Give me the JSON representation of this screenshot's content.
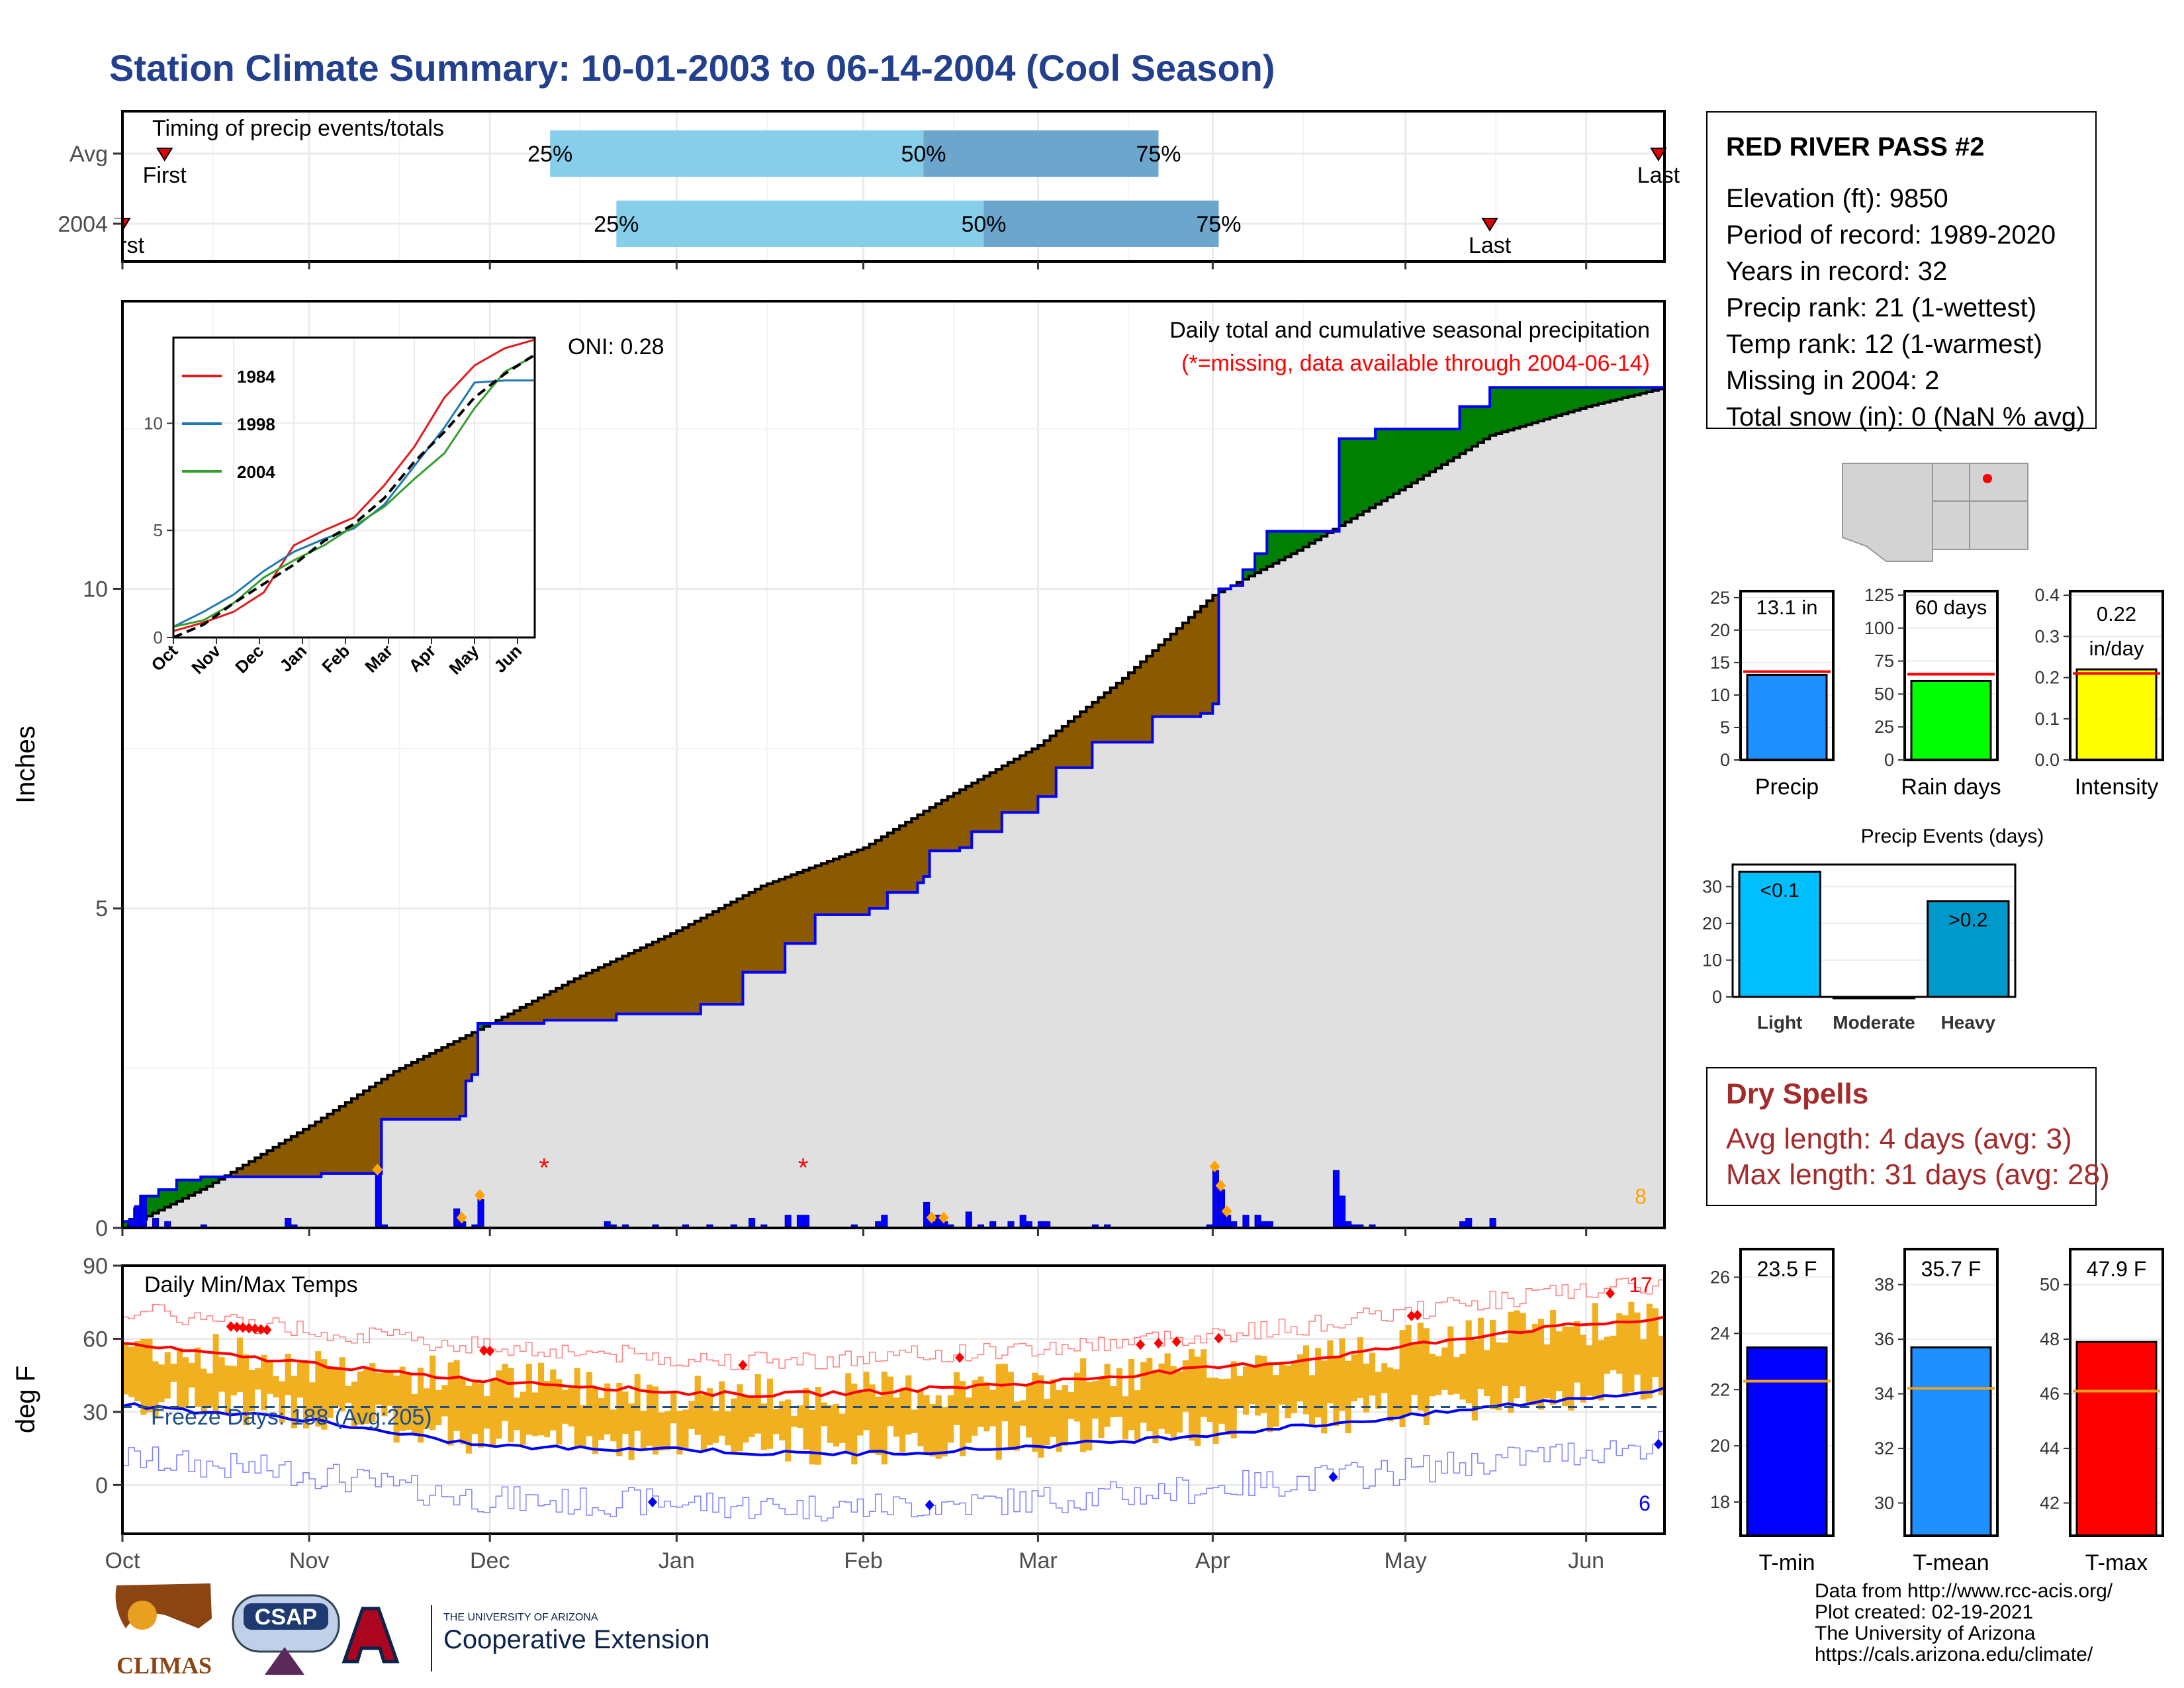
{
  "title": "Station Climate Summary: 10-01-2003 to 06-14-2004 (Cool Season)",
  "station": {
    "name": "RED RIVER PASS #2",
    "lines": [
      "Elevation (ft): 9850",
      "Period of record: 1989-2020",
      "Years in record: 32",
      "Precip rank: 21 (1-wettest)",
      "Temp rank: 12 (1-warmest)",
      "Missing in 2004: 2",
      "Total snow (in): 0 (NaN % avg)"
    ]
  },
  "dry_spells": {
    "title": "Dry Spells",
    "avg_length": "Avg length: 4 days (avg: 3)",
    "max_length": "Max length: 31 days (avg: 28)"
  },
  "credits": [
    "Data from http://www.rcc-acis.org/",
    "Plot created: 02-19-2021",
    "The University of Arizona",
    "https://cals.arizona.edu/climate/"
  ],
  "logos": {
    "climas": "CLIMAS",
    "csap": "CSAP",
    "ua_small": "THE UNIVERSITY OF ARIZONA",
    "ua_big": "Cooperative Extension"
  },
  "colors": {
    "title": "#23408e",
    "quartile_light": "#87ceeb",
    "quartile_dark": "#6ca6cd",
    "cum_fill": "#e0e0e0",
    "cum_line": "#0000ff",
    "surplus": "#008000",
    "deficit": "#8b5a00",
    "precip_bar": "#1e90ff",
    "rain_bar": "#00ff00",
    "intensity_bar": "#ffff00",
    "light_bar": "#00bfff",
    "heavy_bar": "#0099cc",
    "tmin_bar": "#0000ff",
    "tmean_bar": "#1e90ff",
    "tmax_bar": "#ff0000",
    "temp_range": "#f0b020"
  },
  "chart_data": [
    {
      "id": "timing",
      "type": "bar",
      "title": "Timing of precip events/totals",
      "rows": [
        {
          "label": "Avg",
          "first": "10-08",
          "q25": "12-11",
          "q50": "02-11",
          "q75": "03-21",
          "last": "06-13"
        },
        {
          "label": "2004",
          "first": "10-01",
          "q25": "12-22",
          "q50": "02-21",
          "q75": "03-31",
          "last": "05-15"
        }
      ],
      "quartile_labels": [
        "25%",
        "50%",
        "75%"
      ],
      "marker_labels": [
        "First",
        "Last"
      ]
    },
    {
      "id": "cumulative",
      "type": "area",
      "title": "Daily total and cumulative seasonal precipitation",
      "subtitle": "(*=missing, data available through 2004-06-14)",
      "oni": "ONI: 0.28",
      "ylabel": "Inches",
      "ylim": [
        0,
        14.5
      ],
      "yticks": [
        0,
        5,
        10
      ],
      "x_ticks": [
        "Oct",
        "Nov",
        "Dec",
        "Jan",
        "Feb",
        "Mar",
        "Apr",
        "May",
        "Jun"
      ],
      "x_tick_dates": [
        "10-01",
        "11-01",
        "12-01",
        "01-01",
        "02-01",
        "03-01",
        "04-01",
        "05-01",
        "06-01"
      ],
      "avg_cumulative": {
        "dates": [
          "10-01",
          "10-15",
          "11-01",
          "11-15",
          "12-01",
          "12-15",
          "01-01",
          "01-15",
          "02-01",
          "02-15",
          "03-01",
          "03-15",
          "04-01",
          "04-15",
          "05-01",
          "05-15",
          "06-01",
          "06-14"
        ],
        "values": [
          0.0,
          0.65,
          1.6,
          2.45,
          3.2,
          3.9,
          4.65,
          5.35,
          5.95,
          6.75,
          7.55,
          8.6,
          9.9,
          10.6,
          11.6,
          12.4,
          12.85,
          13.15
        ]
      },
      "cumulative_2004": {
        "dates": [
          "10-01",
          "10-03",
          "10-04",
          "10-07",
          "10-10",
          "10-14",
          "10-21",
          "10-28",
          "11-03",
          "11-12",
          "11-13",
          "11-26",
          "11-27",
          "11-28",
          "11-29",
          "12-01",
          "12-10",
          "12-22",
          "01-05",
          "01-12",
          "01-19",
          "01-24",
          "02-02",
          "02-05",
          "02-10",
          "02-11",
          "02-12",
          "02-17",
          "02-19",
          "02-24",
          "03-01",
          "03-04",
          "03-10",
          "03-20",
          "03-28",
          "03-30",
          "03-31",
          "04-01",
          "04-02",
          "04-04",
          "04-06",
          "04-08",
          "04-10",
          "04-15",
          "04-21",
          "04-22",
          "04-24",
          "04-28",
          "05-10",
          "05-15",
          "05-20",
          "05-28",
          "06-14"
        ],
        "values": [
          0.1,
          0.3,
          0.5,
          0.6,
          0.75,
          0.8,
          0.8,
          0.8,
          0.85,
          0.85,
          1.7,
          1.75,
          2.3,
          2.4,
          3.2,
          3.2,
          3.25,
          3.35,
          3.5,
          4.0,
          4.45,
          4.9,
          5.0,
          5.25,
          5.4,
          5.5,
          5.9,
          5.95,
          6.2,
          6.5,
          6.75,
          7.2,
          7.6,
          8.0,
          8.05,
          8.2,
          8.35,
          9.9,
          10.0,
          10.05,
          10.3,
          10.55,
          10.9,
          10.9,
          10.9,
          12.35,
          12.35,
          12.5,
          12.85,
          13.15,
          13.15,
          13.15,
          13.15
        ]
      },
      "daily_precip": {
        "dates": [
          "10-02",
          "10-03",
          "10-04",
          "10-06",
          "10-08",
          "10-14",
          "10-28",
          "10-29",
          "11-12",
          "11-13",
          "11-25",
          "11-26",
          "11-28",
          "11-29",
          "12-20",
          "12-21",
          "12-23",
          "12-28",
          "01-02",
          "01-06",
          "01-10",
          "01-13",
          "01-15",
          "01-19",
          "01-21",
          "01-22",
          "01-30",
          "02-03",
          "02-04",
          "02-11",
          "02-12",
          "02-13",
          "02-14",
          "02-15",
          "02-18",
          "02-20",
          "02-22",
          "02-25",
          "02-27",
          "02-28",
          "03-01",
          "03-02",
          "03-10",
          "03-12",
          "03-29",
          "03-31",
          "04-01",
          "04-02",
          "04-03",
          "04-04",
          "04-06",
          "04-08",
          "04-09",
          "04-10",
          "04-21",
          "04-22",
          "04-23",
          "04-24",
          "04-25",
          "04-27",
          "05-10",
          "05-11",
          "05-15"
        ],
        "values": [
          0.15,
          0.35,
          0.5,
          0.15,
          0.1,
          0.05,
          0.15,
          0.05,
          0.85,
          0.05,
          0.3,
          0.1,
          0.05,
          0.45,
          0.1,
          0.05,
          0.05,
          0.05,
          0.05,
          0.05,
          0.05,
          0.15,
          0.05,
          0.2,
          0.2,
          0.2,
          0.05,
          0.1,
          0.2,
          0.4,
          0.1,
          0.2,
          0.1,
          0.05,
          0.25,
          0.05,
          0.1,
          0.1,
          0.2,
          0.1,
          0.1,
          0.1,
          0.05,
          0.05,
          0.05,
          0.1,
          0.9,
          0.6,
          0.2,
          0.1,
          0.2,
          0.2,
          0.1,
          0.1,
          0.9,
          0.5,
          0.1,
          0.05,
          0.05,
          0.05,
          0.1,
          0.15,
          0.15
        ]
      },
      "missing_dates": [
        "12-10",
        "01-22"
      ],
      "heavy_markers": [
        "11-12",
        "11-26",
        "11-29",
        "02-12",
        "02-14",
        "04-01",
        "04-02",
        "04-03"
      ],
      "heavy_count": "8"
    },
    {
      "id": "inset",
      "type": "line",
      "x_ticks": [
        "Oct",
        "Nov",
        "Dec",
        "Jan",
        "Feb",
        "Mar",
        "Apr",
        "May",
        "Jun"
      ],
      "yticks": [
        0,
        5,
        10
      ],
      "ylim": [
        0,
        14
      ],
      "series": [
        {
          "name": "1984",
          "color": "#e31a1c",
          "values": [
            0.3,
            0.7,
            1.2,
            2.1,
            4.3,
            5.0,
            5.6,
            7.1,
            8.9,
            11.2,
            12.7,
            13.5,
            13.9
          ]
        },
        {
          "name": "1998",
          "color": "#1f78b4",
          "values": [
            0.5,
            1.2,
            2.0,
            3.1,
            4.0,
            4.6,
            5.1,
            6.2,
            8.0,
            9.8,
            11.9,
            12.0,
            12.0
          ]
        },
        {
          "name": "2004",
          "color": "#33a02c",
          "values": [
            0.5,
            0.8,
            1.6,
            2.8,
            3.6,
            4.3,
            5.2,
            6.1,
            7.4,
            8.6,
            10.7,
            12.4,
            13.15
          ]
        },
        {
          "name": "Avg",
          "color": "#000000",
          "values": [
            0.0,
            0.6,
            1.6,
            2.5,
            3.4,
            4.5,
            5.3,
            6.5,
            8.2,
            9.6,
            11.2,
            12.3,
            13.2
          ]
        }
      ]
    },
    {
      "id": "temps",
      "type": "line",
      "title": "Daily Min/Max Temps",
      "ylabel": "deg F",
      "ylim": [
        -20,
        90
      ],
      "yticks": [
        0,
        30,
        60,
        90
      ],
      "x_ticks": [
        "Oct",
        "Nov",
        "Dec",
        "Jan",
        "Feb",
        "Mar",
        "Apr",
        "May",
        "Jun"
      ],
      "freeze_label": "Freeze Days: 188 (Avg:205)",
      "freeze_line": 32,
      "record_high_count": "17",
      "record_low_count": "6",
      "avg_max": {
        "dates": [
          "10-01",
          "10-15",
          "11-01",
          "11-15",
          "12-01",
          "12-15",
          "01-01",
          "01-15",
          "02-01",
          "02-15",
          "03-01",
          "03-15",
          "04-01",
          "04-15",
          "05-01",
          "05-15",
          "06-01",
          "06-14"
        ],
        "values": [
          58,
          54,
          50,
          46,
          43,
          41,
          38,
          37,
          38,
          40,
          42,
          45,
          48,
          51,
          57,
          62,
          66,
          68
        ]
      },
      "avg_min": {
        "dates": [
          "10-01",
          "10-15",
          "11-01",
          "11-15",
          "12-01",
          "12-15",
          "01-01",
          "01-15",
          "02-01",
          "02-15",
          "03-01",
          "03-15",
          "04-01",
          "04-15",
          "05-01",
          "05-15",
          "06-01",
          "06-14"
        ],
        "values": [
          33,
          30,
          27,
          21,
          16,
          15,
          15,
          13,
          13,
          14,
          16,
          18,
          21,
          24,
          28,
          32,
          36,
          39
        ]
      }
    },
    {
      "id": "precip_summary",
      "type": "bar",
      "panels": [
        {
          "name": "Precip",
          "label": "13.1 in",
          "value": 13.1,
          "avg": 13.6,
          "ylim": [
            0,
            26
          ],
          "yticks": [
            0,
            5,
            10,
            15,
            20,
            25
          ]
        },
        {
          "name": "Rain days",
          "label": "60 days",
          "value": 60,
          "avg": 65,
          "ylim": [
            0,
            128
          ],
          "yticks": [
            0,
            25,
            50,
            75,
            100,
            125
          ]
        },
        {
          "name": "Intensity",
          "label": "0.22 in/day",
          "value": 0.22,
          "avg": 0.21,
          "ylim": [
            0,
            0.41
          ],
          "yticks": [
            0.0,
            0.1,
            0.2,
            0.3,
            0.4
          ]
        }
      ]
    },
    {
      "id": "precip_events",
      "type": "bar",
      "title": "Precip Events (days)",
      "categories": [
        "Light",
        "Moderate",
        "Heavy"
      ],
      "values": [
        34,
        0,
        26
      ],
      "bar_labels": [
        "<0.1",
        "",
        ">0.2"
      ],
      "ylim": [
        0,
        36
      ],
      "yticks": [
        0,
        10,
        20,
        30
      ]
    },
    {
      "id": "temp_summary",
      "type": "bar",
      "panels": [
        {
          "name": "T-min",
          "label": "23.5 F",
          "value": 23.5,
          "avg": 22.3,
          "ylim": [
            16.8,
            27
          ],
          "yticks": [
            18,
            20,
            22,
            24,
            26
          ]
        },
        {
          "name": "T-mean",
          "label": "35.7 F",
          "value": 35.7,
          "avg": 34.2,
          "ylim": [
            28.8,
            39.3
          ],
          "yticks": [
            30,
            32,
            34,
            36,
            38
          ]
        },
        {
          "name": "T-max",
          "label": "47.9 F",
          "value": 47.9,
          "avg": 46.1,
          "ylim": [
            40.8,
            51.3
          ],
          "yticks": [
            42,
            44,
            46,
            48,
            50
          ]
        }
      ]
    }
  ]
}
